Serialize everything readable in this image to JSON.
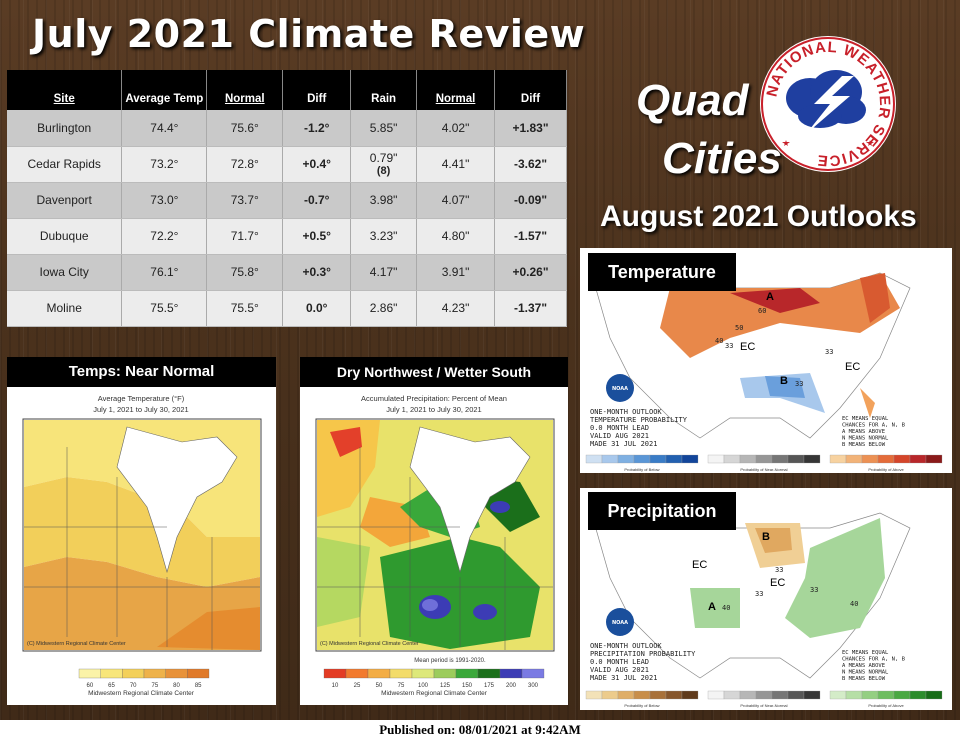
{
  "title": "July 2021 Climate Review",
  "table": {
    "headers": [
      "Site",
      "Average Temp",
      "Normal",
      "Diff",
      "Rain",
      "Normal",
      "Diff"
    ],
    "rows": [
      {
        "site": "Burlington",
        "avg": "74.4°",
        "normal": "75.6°",
        "diff": "-1.2°",
        "rain": "5.85\"",
        "rain_normal": "4.02\"",
        "rain_diff": "+1.83\""
      },
      {
        "site": "Cedar Rapids",
        "avg": "73.2°",
        "normal": "72.8°",
        "diff": "+0.4°",
        "rain": "0.79\"",
        "rain_note": "(8)",
        "rain_normal": "4.41\"",
        "rain_diff": "-3.62\""
      },
      {
        "site": "Davenport",
        "avg": "73.0°",
        "normal": "73.7°",
        "diff": "-0.7°",
        "rain": "3.98\"",
        "rain_normal": "4.07\"",
        "rain_diff": "-0.09\""
      },
      {
        "site": "Dubuque",
        "avg": "72.2°",
        "normal": "71.7°",
        "diff": "+0.5°",
        "rain": "3.23\"",
        "rain_normal": "4.80\"",
        "rain_diff": "-1.57\""
      },
      {
        "site": "Iowa City",
        "avg": "76.1°",
        "normal": "75.8°",
        "diff": "+0.3°",
        "rain": "4.17\"",
        "rain_normal": "3.91\"",
        "rain_diff": "+0.26\""
      },
      {
        "site": "Moline",
        "avg": "75.5°",
        "normal": "75.5°",
        "diff": "0.0°",
        "rain": "2.86\"",
        "rain_normal": "4.23\"",
        "rain_diff": "-1.37\""
      }
    ]
  },
  "region": {
    "line1": "Quad",
    "line2": "Cities"
  },
  "logo_text": "NATIONAL WEATHER SERVICE",
  "outlooks_title": "August 2021 Outlooks",
  "temp_panel": {
    "header": "Temps: Near Normal",
    "map_title": "Average Temperature (°F)",
    "map_dates": "July 1, 2021 to July 30, 2021",
    "credit": "(C) Midwestern Regional Climate Center",
    "scale": [
      "60",
      "65",
      "70",
      "75",
      "80",
      "85"
    ],
    "source": "Midwestern Regional Climate Center"
  },
  "precip_panel": {
    "header": "Dry Northwest / Wetter South",
    "map_title": "Accumulated Precipitation: Percent of Mean",
    "map_dates": "July 1, 2021 to July 30, 2021",
    "credit": "(C) Midwestern Regional Climate Center",
    "period_note": "Mean period is 1991-2020.",
    "scale": [
      "10",
      "25",
      "50",
      "75",
      "100",
      "125",
      "150",
      "175",
      "200",
      "300"
    ],
    "source": "Midwestern Regional Climate Center"
  },
  "outlook_temp": {
    "label": "Temperature",
    "lines": [
      "ONE-MONTH OUTLOOK",
      "TEMPERATURE PROBABILITY",
      "0.0 MONTH LEAD",
      "VALID AUG 2021",
      "MADE 31 JUL 2021"
    ],
    "ec_lines": [
      "EC MEANS EQUAL",
      "CHANCES FOR A, N, B",
      "A MEANS ABOVE",
      "N MEANS NORMAL",
      "B MEANS BELOW"
    ],
    "map_labels": {
      "above": "A",
      "below": "B",
      "ec": "EC"
    },
    "contours": [
      "60",
      "50",
      "40",
      "33",
      "33",
      "33"
    ],
    "legend_captions": [
      "Probability of Below",
      "Probability of Near-Normal",
      "Probability of Above"
    ]
  },
  "outlook_precip": {
    "label": "Precipitation",
    "lines": [
      "ONE-MONTH OUTLOOK",
      "PRECIPITATION PROBABILITY",
      "0.0 MONTH LEAD",
      "VALID AUG 2021",
      "MADE 31 JUL 2021"
    ],
    "ec_lines": [
      "EC MEANS EQUAL",
      "CHANCES FOR A, N, B",
      "A MEANS ABOVE",
      "N MEANS NORMAL",
      "B MEANS BELOW"
    ],
    "map_labels": {
      "above": "A",
      "below": "B",
      "ec": "EC"
    },
    "contours": [
      "40",
      "33",
      "33",
      "40",
      "33"
    ],
    "legend_captions": [
      "Probability of Below",
      "Probability of Near-Normal",
      "Probability of Above"
    ]
  },
  "noaa_label": "NOAA",
  "footer": "Published on: 08/01/2021 at 9:42AM"
}
